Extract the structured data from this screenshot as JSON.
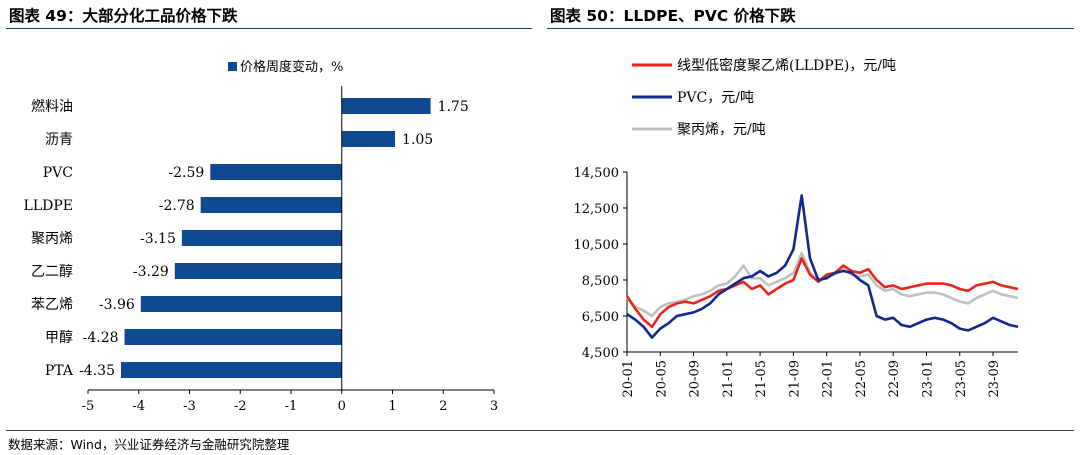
{
  "titles": {
    "left": "图表 49：大部分化工品价格下跌",
    "right": "图表 50：LLDPE、PVC 价格下跌"
  },
  "source": "数据来源：Wind，兴业证券经济与金融研究院整理",
  "chart_data": [
    {
      "type": "bar",
      "orientation": "horizontal",
      "title": "",
      "categories": [
        "燃料油",
        "沥青",
        "PVC",
        "LLDPE",
        "聚丙烯",
        "乙二醇",
        "苯乙烯",
        "甲醇",
        "PTA"
      ],
      "series": [
        {
          "name": "价格周度变动，%",
          "values": [
            1.75,
            1.05,
            -2.59,
            -2.78,
            -3.15,
            -3.29,
            -3.96,
            -4.28,
            -4.35
          ],
          "color": "#0d4a92"
        }
      ],
      "value_labels": [
        "1.75",
        "1.05",
        "-2.59",
        "-2.78",
        "-3.15",
        "-3.29",
        "-3.96",
        "-4.28",
        "-4.35"
      ],
      "xlim": [
        -5,
        3
      ],
      "xticks": [
        "-5",
        "-4",
        "-3",
        "-2",
        "-1",
        "0",
        "1",
        "2",
        "3"
      ],
      "legend": "top",
      "grid": false
    },
    {
      "type": "line",
      "title": "",
      "x_range": [
        "2020-01",
        "2023-12"
      ],
      "x_tick_labels": [
        "20-01",
        "20-05",
        "20-09",
        "21-01",
        "21-05",
        "21-09",
        "22-01",
        "22-05",
        "22-09",
        "23-01",
        "23-05",
        "23-09"
      ],
      "ylim": [
        4500,
        14500
      ],
      "y_tick_labels": [
        "4,500",
        "6,500",
        "8,500",
        "10,500",
        "12,500",
        "14,500"
      ],
      "legend": "top-left",
      "grid": false,
      "series": [
        {
          "name": "线型低密度聚乙烯(LLDPE)，元/吨",
          "color": "#e8251f",
          "points": [
            [
              "2020-01",
              7600
            ],
            [
              "2020-02",
              6900
            ],
            [
              "2020-03",
              6300
            ],
            [
              "2020-04",
              5900
            ],
            [
              "2020-05",
              6600
            ],
            [
              "2020-06",
              7000
            ],
            [
              "2020-07",
              7200
            ],
            [
              "2020-08",
              7300
            ],
            [
              "2020-09",
              7200
            ],
            [
              "2020-10",
              7400
            ],
            [
              "2020-11",
              7600
            ],
            [
              "2020-12",
              7900
            ],
            [
              "2021-01",
              8000
            ],
            [
              "2021-02",
              8200
            ],
            [
              "2021-03",
              8400
            ],
            [
              "2021-04",
              8000
            ],
            [
              "2021-05",
              8200
            ],
            [
              "2021-06",
              7700
            ],
            [
              "2021-07",
              8000
            ],
            [
              "2021-08",
              8300
            ],
            [
              "2021-09",
              8500
            ],
            [
              "2021-10",
              9700
            ],
            [
              "2021-11",
              8800
            ],
            [
              "2021-12",
              8400
            ],
            [
              "2022-01",
              8800
            ],
            [
              "2022-02",
              8900
            ],
            [
              "2022-03",
              9300
            ],
            [
              "2022-04",
              9000
            ],
            [
              "2022-05",
              8900
            ],
            [
              "2022-06",
              9100
            ],
            [
              "2022-07",
              8500
            ],
            [
              "2022-08",
              8100
            ],
            [
              "2022-09",
              8200
            ],
            [
              "2022-10",
              8000
            ],
            [
              "2022-11",
              8100
            ],
            [
              "2022-12",
              8200
            ],
            [
              "2023-01",
              8300
            ],
            [
              "2023-02",
              8300
            ],
            [
              "2023-03",
              8300
            ],
            [
              "2023-04",
              8200
            ],
            [
              "2023-05",
              8000
            ],
            [
              "2023-06",
              7900
            ],
            [
              "2023-07",
              8200
            ],
            [
              "2023-08",
              8300
            ],
            [
              "2023-09",
              8400
            ],
            [
              "2023-10",
              8200
            ],
            [
              "2023-11",
              8100
            ],
            [
              "2023-12",
              8000
            ]
          ]
        },
        {
          "name": "PVC，元/吨",
          "color": "#12288c",
          "points": [
            [
              "2020-01",
              6600
            ],
            [
              "2020-02",
              6300
            ],
            [
              "2020-03",
              5900
            ],
            [
              "2020-04",
              5300
            ],
            [
              "2020-05",
              5800
            ],
            [
              "2020-06",
              6100
            ],
            [
              "2020-07",
              6500
            ],
            [
              "2020-08",
              6600
            ],
            [
              "2020-09",
              6700
            ],
            [
              "2020-10",
              6900
            ],
            [
              "2020-11",
              7200
            ],
            [
              "2020-12",
              7700
            ],
            [
              "2021-01",
              8000
            ],
            [
              "2021-02",
              8300
            ],
            [
              "2021-03",
              8600
            ],
            [
              "2021-04",
              8700
            ],
            [
              "2021-05",
              9000
            ],
            [
              "2021-06",
              8700
            ],
            [
              "2021-07",
              8900
            ],
            [
              "2021-08",
              9300
            ],
            [
              "2021-09",
              10200
            ],
            [
              "2021-10",
              13200
            ],
            [
              "2021-11",
              9700
            ],
            [
              "2021-12",
              8500
            ],
            [
              "2022-01",
              8600
            ],
            [
              "2022-02",
              8900
            ],
            [
              "2022-03",
              9000
            ],
            [
              "2022-04",
              8900
            ],
            [
              "2022-05",
              8500
            ],
            [
              "2022-06",
              8200
            ],
            [
              "2022-07",
              6500
            ],
            [
              "2022-08",
              6300
            ],
            [
              "2022-09",
              6400
            ],
            [
              "2022-10",
              6000
            ],
            [
              "2022-11",
              5900
            ],
            [
              "2022-12",
              6100
            ],
            [
              "2023-01",
              6300
            ],
            [
              "2023-02",
              6400
            ],
            [
              "2023-03",
              6300
            ],
            [
              "2023-04",
              6100
            ],
            [
              "2023-05",
              5800
            ],
            [
              "2023-06",
              5700
            ],
            [
              "2023-07",
              5900
            ],
            [
              "2023-08",
              6100
            ],
            [
              "2023-09",
              6400
            ],
            [
              "2023-10",
              6200
            ],
            [
              "2023-11",
              6000
            ],
            [
              "2023-12",
              5900
            ]
          ]
        },
        {
          "name": "聚丙烯，元/吨",
          "color": "#c0c0c0",
          "points": [
            [
              "2020-01",
              7500
            ],
            [
              "2020-02",
              7000
            ],
            [
              "2020-03",
              6800
            ],
            [
              "2020-04",
              6500
            ],
            [
              "2020-05",
              7000
            ],
            [
              "2020-06",
              7200
            ],
            [
              "2020-07",
              7300
            ],
            [
              "2020-08",
              7400
            ],
            [
              "2020-09",
              7600
            ],
            [
              "2020-10",
              7700
            ],
            [
              "2020-11",
              7900
            ],
            [
              "2020-12",
              8200
            ],
            [
              "2021-01",
              8300
            ],
            [
              "2021-02",
              8700
            ],
            [
              "2021-03",
              9300
            ],
            [
              "2021-04",
              8600
            ],
            [
              "2021-05",
              8600
            ],
            [
              "2021-06",
              8200
            ],
            [
              "2021-07",
              8400
            ],
            [
              "2021-08",
              8600
            ],
            [
              "2021-09",
              8900
            ],
            [
              "2021-10",
              10000
            ],
            [
              "2021-11",
              8900
            ],
            [
              "2021-12",
              8400
            ],
            [
              "2022-01",
              8700
            ],
            [
              "2022-02",
              8800
            ],
            [
              "2022-03",
              9100
            ],
            [
              "2022-04",
              8800
            ],
            [
              "2022-05",
              8700
            ],
            [
              "2022-06",
              8800
            ],
            [
              "2022-07",
              8200
            ],
            [
              "2022-08",
              7900
            ],
            [
              "2022-09",
              8000
            ],
            [
              "2022-10",
              7700
            ],
            [
              "2022-11",
              7600
            ],
            [
              "2022-12",
              7700
            ],
            [
              "2023-01",
              7800
            ],
            [
              "2023-02",
              7800
            ],
            [
              "2023-03",
              7700
            ],
            [
              "2023-04",
              7500
            ],
            [
              "2023-05",
              7300
            ],
            [
              "2023-06",
              7200
            ],
            [
              "2023-07",
              7500
            ],
            [
              "2023-08",
              7700
            ],
            [
              "2023-09",
              7900
            ],
            [
              "2023-10",
              7700
            ],
            [
              "2023-11",
              7600
            ],
            [
              "2023-12",
              7500
            ]
          ]
        }
      ]
    }
  ]
}
